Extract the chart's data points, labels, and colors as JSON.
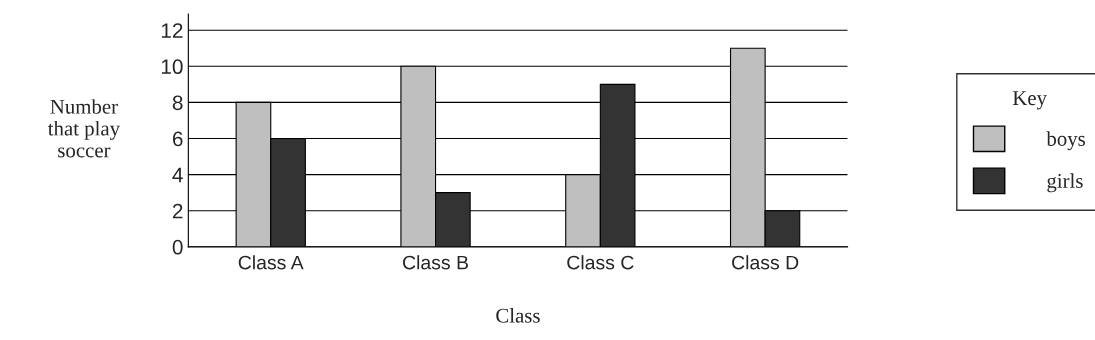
{
  "chart_data": {
    "type": "bar",
    "xlabel": "Class",
    "ylabel": "Number\nthat play\nsoccer",
    "legend_title": "Key",
    "categories": [
      "Class A",
      "Class B",
      "Class C",
      "Class D"
    ],
    "series": [
      {
        "name": "boys",
        "color": "#bfbfbf",
        "values": [
          8,
          10,
          4,
          11
        ]
      },
      {
        "name": "girls",
        "color": "#333333",
        "values": [
          6,
          3,
          9,
          2
        ]
      }
    ],
    "ylim": [
      0,
      12.9
    ],
    "yticks": [
      0,
      2,
      4,
      6,
      8,
      10,
      12
    ],
    "grid": "y",
    "legend": "right"
  }
}
